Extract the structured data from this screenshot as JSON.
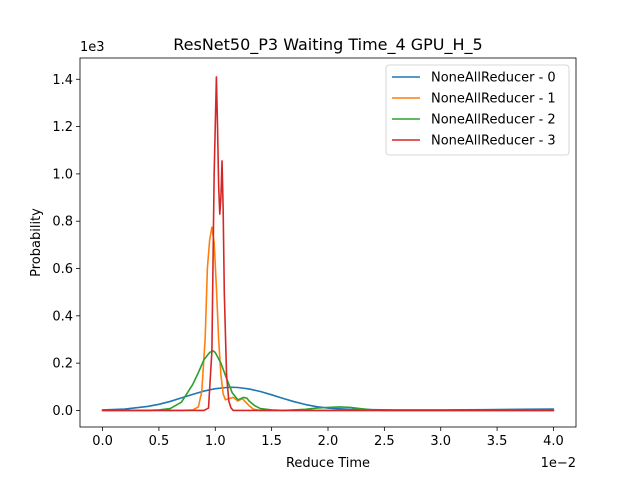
{
  "chart_data": {
    "type": "line",
    "title": "ResNet50_P3 Waiting Time_4 GPU_H_5",
    "xlabel": "Reduce Time",
    "ylabel": "Probability",
    "x_offset_text": "1e−2",
    "y_offset_text": "1e3",
    "xlim": [
      -0.002,
      0.042
    ],
    "ylim": [
      -70,
      1490
    ],
    "x_ticks": [
      0,
      0.005,
      0.01,
      0.015,
      0.02,
      0.025,
      0.03,
      0.035,
      0.04
    ],
    "x_tick_labels": [
      "0.0",
      "0.5",
      "1.0",
      "1.5",
      "2.0",
      "2.5",
      "3.0",
      "3.5",
      "4.0"
    ],
    "y_ticks": [
      0,
      200,
      400,
      600,
      800,
      1000,
      1200,
      1400
    ],
    "y_tick_labels": [
      "0.0",
      "0.2",
      "0.4",
      "0.6",
      "0.8",
      "1.0",
      "1.2",
      "1.4"
    ],
    "grid": false,
    "legend_position": "top-right",
    "series": [
      {
        "name": "NoneAllReducer - 0",
        "color": "#1f77b4",
        "x": [
          0,
          0.002,
          0.004,
          0.005,
          0.006,
          0.007,
          0.008,
          0.009,
          0.01,
          0.011,
          0.0115,
          0.012,
          0.013,
          0.014,
          0.015,
          0.016,
          0.017,
          0.018,
          0.019,
          0.02,
          0.021,
          0.022,
          0.024,
          0.026,
          0.03,
          0.034,
          0.037,
          0.04
        ],
        "values": [
          2,
          6,
          17,
          26,
          38,
          53,
          68,
          82,
          92,
          97,
          98,
          97,
          91,
          80,
          66,
          51,
          37,
          25,
          16,
          10,
          7,
          5,
          3,
          2,
          2,
          3,
          5,
          6
        ]
      },
      {
        "name": "NoneAllReducer - 1",
        "color": "#ff7f0e",
        "x": [
          0,
          0.007,
          0.008,
          0.0085,
          0.0088,
          0.0091,
          0.0093,
          0.0095,
          0.0097,
          0.0099,
          0.0101,
          0.0103,
          0.0105,
          0.0107,
          0.0109,
          0.0112,
          0.0116,
          0.012,
          0.0124,
          0.0127,
          0.013,
          0.0134,
          0.014,
          0.016,
          0.02,
          0.03,
          0.04
        ],
        "values": [
          0,
          0,
          2,
          15,
          80,
          300,
          600,
          720,
          775,
          710,
          520,
          300,
          150,
          70,
          45,
          50,
          55,
          40,
          50,
          35,
          20,
          5,
          0,
          0,
          0,
          0,
          0
        ]
      },
      {
        "name": "NoneAllReducer - 2",
        "color": "#2ca02c",
        "x": [
          0,
          0.004,
          0.005,
          0.006,
          0.007,
          0.008,
          0.0085,
          0.009,
          0.0095,
          0.0098,
          0.01,
          0.0105,
          0.011,
          0.0115,
          0.012,
          0.0125,
          0.0128,
          0.013,
          0.0135,
          0.014,
          0.015,
          0.016,
          0.017,
          0.018,
          0.019,
          0.02,
          0.021,
          0.022,
          0.023,
          0.024,
          0.025,
          0.03,
          0.04
        ],
        "values": [
          0,
          0,
          2,
          8,
          35,
          110,
          160,
          215,
          245,
          252,
          245,
          200,
          135,
          75,
          45,
          55,
          52,
          40,
          20,
          8,
          2,
          0,
          2,
          5,
          10,
          13,
          15,
          13,
          7,
          2,
          0,
          0,
          0
        ]
      },
      {
        "name": "NoneAllReducer - 3",
        "color": "#d62728",
        "x": [
          0,
          0.009,
          0.0094,
          0.0097,
          0.0099,
          0.0101,
          0.0102,
          0.0103,
          0.0104,
          0.0105,
          0.0106,
          0.0107,
          0.0108,
          0.011,
          0.0112,
          0.0114,
          0.0116,
          0.012,
          0.04
        ],
        "values": [
          0,
          0,
          10,
          250,
          1000,
          1410,
          1200,
          950,
          830,
          900,
          1055,
          850,
          500,
          150,
          40,
          10,
          0,
          0,
          0
        ]
      }
    ]
  }
}
